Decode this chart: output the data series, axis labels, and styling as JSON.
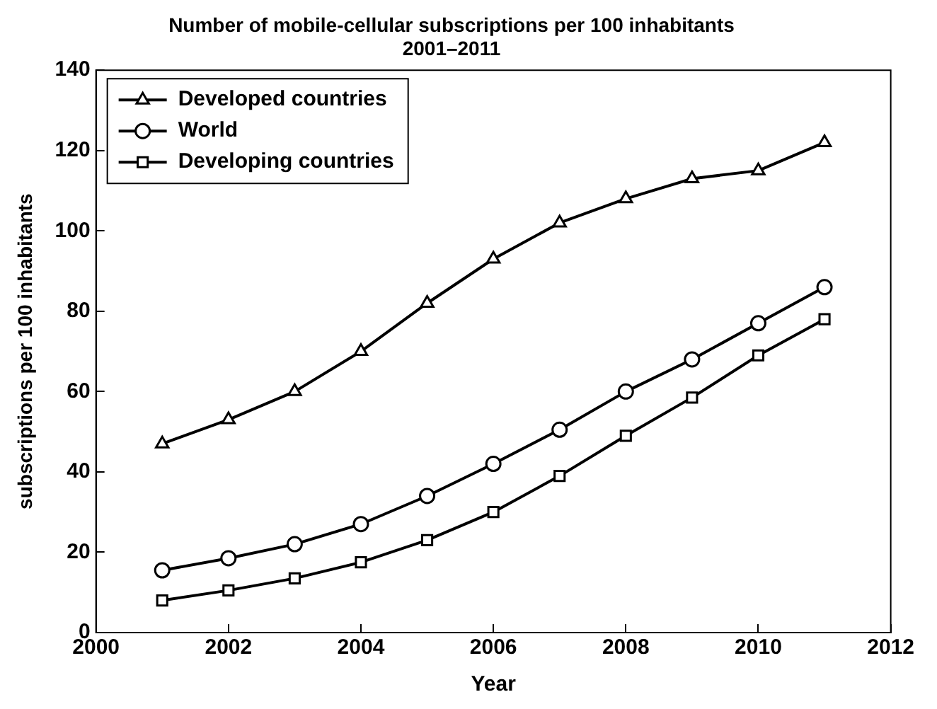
{
  "chart_data": {
    "type": "line",
    "title": "Number of mobile-cellular subscriptions per 100 inhabitants",
    "subtitle": "2001–2011",
    "xlabel": "Year",
    "ylabel": "subscriptions per 100 inhabitants",
    "x": [
      2001,
      2002,
      2003,
      2004,
      2005,
      2006,
      2007,
      2008,
      2009,
      2010,
      2011
    ],
    "series": [
      {
        "name": "Developed countries",
        "color": "#000000",
        "marker": "triangle",
        "values": [
          47,
          53,
          60,
          70,
          82,
          93,
          102,
          108,
          113,
          115,
          122
        ]
      },
      {
        "name": "World",
        "color": "#000000",
        "marker": "circle",
        "values": [
          15.5,
          18.5,
          22,
          27,
          34,
          42,
          50.5,
          60,
          68,
          77,
          86
        ]
      },
      {
        "name": "Developing countries",
        "color": "#000000",
        "marker": "square",
        "values": [
          8,
          10.5,
          13.5,
          17.5,
          23,
          30,
          39,
          49,
          58.5,
          69,
          78
        ]
      }
    ],
    "xlim": [
      2000,
      2012
    ],
    "xticks": [
      2000,
      2002,
      2004,
      2006,
      2008,
      2010,
      2012
    ],
    "ylim": [
      0,
      140
    ],
    "yticks": [
      0,
      20,
      40,
      60,
      80,
      100,
      120,
      140
    ],
    "grid": false,
    "legend": "top left",
    "line_style": "solid"
  }
}
